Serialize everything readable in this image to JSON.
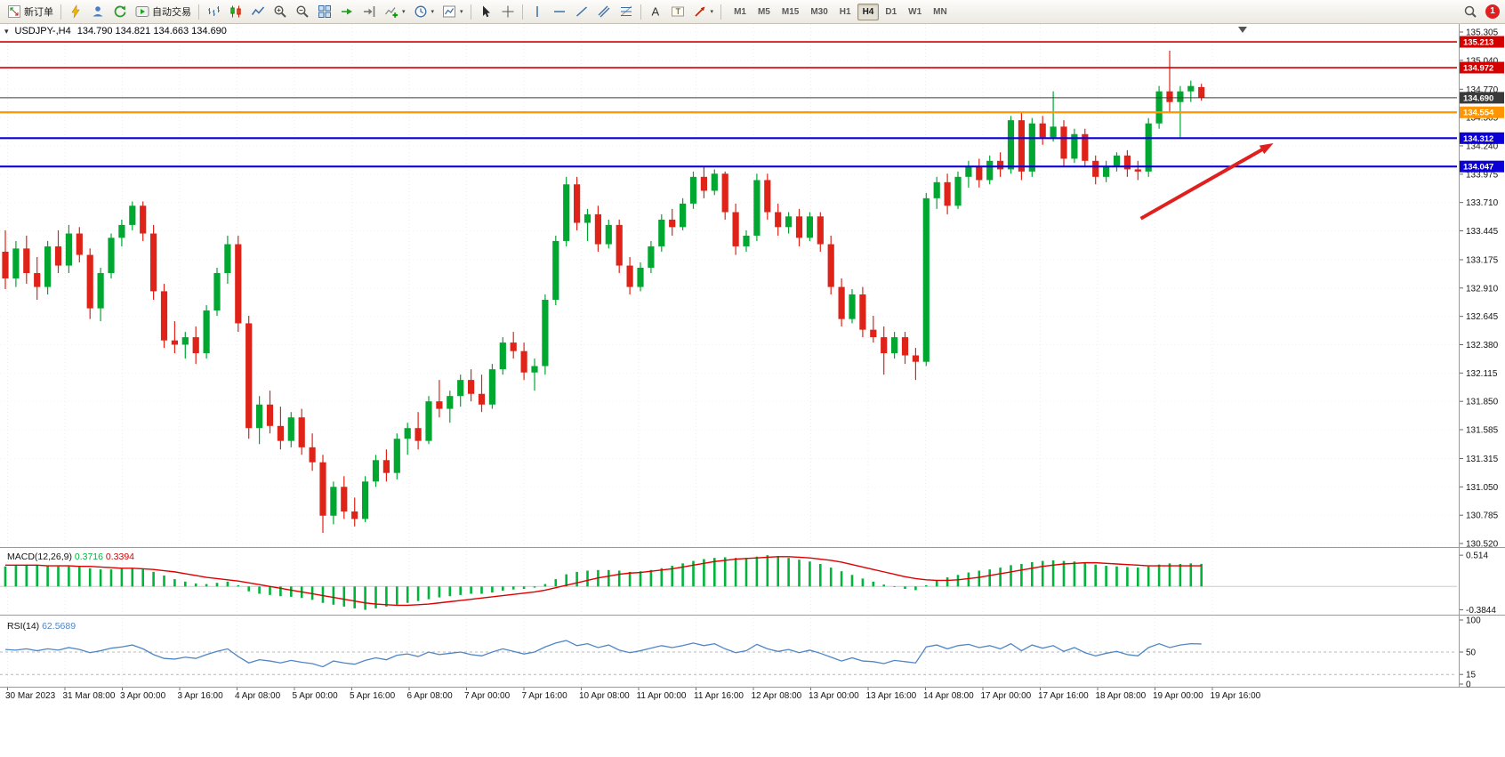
{
  "toolbar": {
    "new_order_label": "新订单",
    "autotrading_label": "自动交易",
    "timeframes": [
      "M1",
      "M5",
      "M15",
      "M30",
      "H1",
      "H4",
      "D1",
      "W1",
      "MN"
    ],
    "active_timeframe": "H4",
    "notification_count": "1"
  },
  "icons": {
    "text_tool_glyph": "A",
    "label_tool_glyph": "T",
    "caret_glyph": "▾",
    "expander_glyph": "▾"
  },
  "chart_header": {
    "symbol": "USDJPY-,H4",
    "ohlc": "134.790 134.821 134.663 134.690"
  },
  "chart_data": {
    "type": "candlestick",
    "symbol": "USDJPY-",
    "timeframe": "H4",
    "title": "USDJPY-,H4 134.790 134.821 134.663 134.690",
    "price_max": 135.305,
    "price_min": 130.52,
    "price_axis": [
      "135.305",
      "135.040",
      "134.770",
      "134.505",
      "134.240",
      "133.975",
      "133.710",
      "133.445",
      "133.175",
      "132.910",
      "132.645",
      "132.380",
      "132.115",
      "131.850",
      "131.585",
      "131.315",
      "131.050",
      "130.785",
      "130.520"
    ],
    "time_axis": [
      "30 Mar 2023",
      "31 Mar 08:00",
      "3 Apr 00:00",
      "3 Apr 16:00",
      "4 Apr 08:00",
      "5 Apr 00:00",
      "5 Apr 16:00",
      "6 Apr 08:00",
      "7 Apr 00:00",
      "7 Apr 16:00",
      "10 Apr 08:00",
      "11 Apr 00:00",
      "11 Apr 16:00",
      "12 Apr 08:00",
      "13 Apr 00:00",
      "13 Apr 16:00",
      "14 Apr 08:00",
      "17 Apr 00:00",
      "17 Apr 16:00",
      "18 Apr 08:00",
      "19 Apr 00:00",
      "19 Apr 16:00"
    ],
    "hlines": [
      {
        "price": 135.213,
        "badge": "135.213",
        "color": "#d40000",
        "width": 1.6
      },
      {
        "price": 134.972,
        "badge": "134.972",
        "color": "#d40000",
        "width": 1.6
      },
      {
        "price": 134.69,
        "badge": "134.690",
        "color": "#3a3a3a",
        "width": 1
      },
      {
        "price": 134.554,
        "badge": "134.554",
        "color": "#ff9500",
        "width": 2.2
      },
      {
        "price": 134.312,
        "badge": "134.312",
        "color": "#0b00d8",
        "width": 2.2
      },
      {
        "price": 134.047,
        "badge": "134.047",
        "color": "#0b00d8",
        "width": 2.2
      }
    ],
    "arrow": {
      "x1_frac": 0.783,
      "price1": 133.56,
      "x2_frac": 0.874,
      "price2": 134.265,
      "color": "#e01f1f"
    },
    "colors": {
      "up": "#00a832",
      "down": "#df2318"
    },
    "candles": [
      [
        133.25,
        133.45,
        132.9,
        133.0
      ],
      [
        133.0,
        133.35,
        132.92,
        133.28
      ],
      [
        133.28,
        133.4,
        132.95,
        133.05
      ],
      [
        133.05,
        133.2,
        132.8,
        132.92
      ],
      [
        132.92,
        133.35,
        132.85,
        133.3
      ],
      [
        133.3,
        133.45,
        133.05,
        133.12
      ],
      [
        133.12,
        133.5,
        133.05,
        133.42
      ],
      [
        133.42,
        133.48,
        133.15,
        133.22
      ],
      [
        133.22,
        133.28,
        132.62,
        132.72
      ],
      [
        132.72,
        133.1,
        132.6,
        133.05
      ],
      [
        133.05,
        133.42,
        133.0,
        133.38
      ],
      [
        133.38,
        133.55,
        133.3,
        133.5
      ],
      [
        133.5,
        133.72,
        133.45,
        133.68
      ],
      [
        133.68,
        133.72,
        133.35,
        133.42
      ],
      [
        133.42,
        133.5,
        132.8,
        132.88
      ],
      [
        132.88,
        132.95,
        132.35,
        132.42
      ],
      [
        132.42,
        132.6,
        132.3,
        132.38
      ],
      [
        132.38,
        132.5,
        132.25,
        132.45
      ],
      [
        132.45,
        132.55,
        132.2,
        132.3
      ],
      [
        132.3,
        132.75,
        132.25,
        132.7
      ],
      [
        132.7,
        133.1,
        132.65,
        133.05
      ],
      [
        133.05,
        133.4,
        132.95,
        133.32
      ],
      [
        133.32,
        133.4,
        132.5,
        132.58
      ],
      [
        132.58,
        132.65,
        131.5,
        131.6
      ],
      [
        131.6,
        131.9,
        131.45,
        131.82
      ],
      [
        131.82,
        131.95,
        131.55,
        131.62
      ],
      [
        131.62,
        131.8,
        131.4,
        131.48
      ],
      [
        131.48,
        131.75,
        131.42,
        131.7
      ],
      [
        131.7,
        131.78,
        131.35,
        131.42
      ],
      [
        131.42,
        131.55,
        131.2,
        131.28
      ],
      [
        131.28,
        131.35,
        130.62,
        130.78
      ],
      [
        130.78,
        131.1,
        130.7,
        131.05
      ],
      [
        131.05,
        131.15,
        130.75,
        130.82
      ],
      [
        130.82,
        130.95,
        130.68,
        130.75
      ],
      [
        130.75,
        131.15,
        130.72,
        131.1
      ],
      [
        131.1,
        131.35,
        131.05,
        131.3
      ],
      [
        131.3,
        131.4,
        131.1,
        131.18
      ],
      [
        131.18,
        131.55,
        131.12,
        131.5
      ],
      [
        131.5,
        131.65,
        131.35,
        131.6
      ],
      [
        131.6,
        131.75,
        131.4,
        131.48
      ],
      [
        131.48,
        131.9,
        131.45,
        131.85
      ],
      [
        131.85,
        132.05,
        131.7,
        131.78
      ],
      [
        131.78,
        131.95,
        131.65,
        131.9
      ],
      [
        131.9,
        132.1,
        131.8,
        132.05
      ],
      [
        132.05,
        132.15,
        131.85,
        131.92
      ],
      [
        131.92,
        132.1,
        131.75,
        131.82
      ],
      [
        131.82,
        132.2,
        131.78,
        132.15
      ],
      [
        132.15,
        132.45,
        132.1,
        132.4
      ],
      [
        132.4,
        132.5,
        132.25,
        132.32
      ],
      [
        132.32,
        132.4,
        132.05,
        132.12
      ],
      [
        132.12,
        132.25,
        131.95,
        132.18
      ],
      [
        132.18,
        132.85,
        132.1,
        132.8
      ],
      [
        132.8,
        133.4,
        132.75,
        133.35
      ],
      [
        133.35,
        133.95,
        133.3,
        133.88
      ],
      [
        133.88,
        133.95,
        133.45,
        133.52
      ],
      [
        133.52,
        133.65,
        133.35,
        133.6
      ],
      [
        133.6,
        133.68,
        133.25,
        133.32
      ],
      [
        133.32,
        133.55,
        133.28,
        133.5
      ],
      [
        133.5,
        133.55,
        133.05,
        133.12
      ],
      [
        133.12,
        133.2,
        132.85,
        132.92
      ],
      [
        132.92,
        133.15,
        132.88,
        133.1
      ],
      [
        133.1,
        133.35,
        133.05,
        133.3
      ],
      [
        133.3,
        133.6,
        133.25,
        133.55
      ],
      [
        133.55,
        133.65,
        133.4,
        133.48
      ],
      [
        133.48,
        133.75,
        133.45,
        133.7
      ],
      [
        133.7,
        134.0,
        133.65,
        133.95
      ],
      [
        133.95,
        134.05,
        133.75,
        133.82
      ],
      [
        133.82,
        134.02,
        133.78,
        133.98
      ],
      [
        133.98,
        134.0,
        133.55,
        133.62
      ],
      [
        133.62,
        133.7,
        133.22,
        133.3
      ],
      [
        133.3,
        133.45,
        133.25,
        133.4
      ],
      [
        133.4,
        133.98,
        133.35,
        133.92
      ],
      [
        133.92,
        133.98,
        133.55,
        133.62
      ],
      [
        133.62,
        133.7,
        133.4,
        133.48
      ],
      [
        133.48,
        133.62,
        133.42,
        133.58
      ],
      [
        133.58,
        133.65,
        133.3,
        133.38
      ],
      [
        133.38,
        133.62,
        133.35,
        133.58
      ],
      [
        133.58,
        133.62,
        133.25,
        133.32
      ],
      [
        133.32,
        133.4,
        132.85,
        132.92
      ],
      [
        132.92,
        133.0,
        132.55,
        132.62
      ],
      [
        132.62,
        132.9,
        132.58,
        132.85
      ],
      [
        132.85,
        132.92,
        132.45,
        132.52
      ],
      [
        132.52,
        132.65,
        132.4,
        132.45
      ],
      [
        132.45,
        132.55,
        132.1,
        132.3
      ],
      [
        132.3,
        132.5,
        132.25,
        132.45
      ],
      [
        132.45,
        132.5,
        132.2,
        132.28
      ],
      [
        132.28,
        132.35,
        132.05,
        132.22
      ],
      [
        132.22,
        133.8,
        132.18,
        133.75
      ],
      [
        133.75,
        133.95,
        133.65,
        133.9
      ],
      [
        133.9,
        133.98,
        133.6,
        133.68
      ],
      [
        133.68,
        134.0,
        133.65,
        133.95
      ],
      [
        133.95,
        134.1,
        133.85,
        134.05
      ],
      [
        134.05,
        134.12,
        133.85,
        133.92
      ],
      [
        133.92,
        134.15,
        133.88,
        134.1
      ],
      [
        134.1,
        134.18,
        133.95,
        134.02
      ],
      [
        134.02,
        134.52,
        133.98,
        134.48
      ],
      [
        134.48,
        134.55,
        133.92,
        134.0
      ],
      [
        134.0,
        134.5,
        133.95,
        134.45
      ],
      [
        134.45,
        134.52,
        134.25,
        134.32
      ],
      [
        134.32,
        134.75,
        134.28,
        134.42
      ],
      [
        134.42,
        134.48,
        134.05,
        134.12
      ],
      [
        134.12,
        134.4,
        134.08,
        134.35
      ],
      [
        134.35,
        134.4,
        134.05,
        134.1
      ],
      [
        134.1,
        134.15,
        133.88,
        133.95
      ],
      [
        133.95,
        134.1,
        133.9,
        134.05
      ],
      [
        134.05,
        134.18,
        134.0,
        134.15
      ],
      [
        134.15,
        134.2,
        133.95,
        134.02
      ],
      [
        134.02,
        134.1,
        133.92,
        134.0
      ],
      [
        134.0,
        134.5,
        133.95,
        134.45
      ],
      [
        134.45,
        134.8,
        134.4,
        134.75
      ],
      [
        134.75,
        135.13,
        134.55,
        134.65
      ],
      [
        134.65,
        134.8,
        134.32,
        134.75
      ],
      [
        134.75,
        134.85,
        134.65,
        134.8
      ],
      [
        134.79,
        134.821,
        134.663,
        134.69
      ]
    ],
    "macd": {
      "name": "MACD(12,26,9)",
      "value_main": "0.3716",
      "value_signal": "0.3394",
      "hist_color": "#00b43c",
      "signal_color": "#dd0000",
      "axis_labels": [
        "0.514",
        "-0.3844"
      ],
      "histogram": [
        0.33,
        0.34,
        0.35,
        0.35,
        0.34,
        0.33,
        0.33,
        0.32,
        0.3,
        0.28,
        0.28,
        0.29,
        0.3,
        0.28,
        0.24,
        0.18,
        0.12,
        0.08,
        0.05,
        0.04,
        0.06,
        0.08,
        0.02,
        -0.08,
        -0.12,
        -0.14,
        -0.16,
        -0.17,
        -0.19,
        -0.22,
        -0.27,
        -0.3,
        -0.33,
        -0.36,
        -0.3844,
        -0.36,
        -0.33,
        -0.3,
        -0.27,
        -0.24,
        -0.21,
        -0.18,
        -0.16,
        -0.14,
        -0.12,
        -0.12,
        -0.1,
        -0.07,
        -0.05,
        -0.04,
        -0.02,
        0.04,
        0.12,
        0.2,
        0.24,
        0.26,
        0.27,
        0.27,
        0.26,
        0.24,
        0.25,
        0.27,
        0.3,
        0.34,
        0.38,
        0.42,
        0.45,
        0.47,
        0.48,
        0.47,
        0.46,
        0.49,
        0.514,
        0.5,
        0.47,
        0.44,
        0.41,
        0.37,
        0.31,
        0.25,
        0.19,
        0.13,
        0.08,
        0.03,
        -0.01,
        -0.04,
        -0.06,
        0.02,
        0.1,
        0.15,
        0.19,
        0.23,
        0.26,
        0.28,
        0.31,
        0.35,
        0.37,
        0.4,
        0.42,
        0.43,
        0.42,
        0.41,
        0.39,
        0.36,
        0.34,
        0.33,
        0.32,
        0.31,
        0.33,
        0.36,
        0.38,
        0.37,
        0.38,
        0.3716
      ],
      "signal": [
        0.35,
        0.35,
        0.35,
        0.35,
        0.34,
        0.34,
        0.34,
        0.33,
        0.33,
        0.32,
        0.31,
        0.3,
        0.3,
        0.29,
        0.28,
        0.26,
        0.24,
        0.21,
        0.18,
        0.15,
        0.13,
        0.11,
        0.09,
        0.06,
        0.03,
        0.0,
        -0.03,
        -0.06,
        -0.09,
        -0.12,
        -0.15,
        -0.18,
        -0.21,
        -0.24,
        -0.27,
        -0.29,
        -0.3,
        -0.31,
        -0.31,
        -0.3,
        -0.29,
        -0.27,
        -0.25,
        -0.23,
        -0.21,
        -0.19,
        -0.17,
        -0.15,
        -0.13,
        -0.11,
        -0.09,
        -0.06,
        -0.02,
        0.02,
        0.06,
        0.1,
        0.14,
        0.17,
        0.2,
        0.22,
        0.23,
        0.25,
        0.27,
        0.29,
        0.32,
        0.35,
        0.38,
        0.41,
        0.43,
        0.45,
        0.46,
        0.47,
        0.48,
        0.49,
        0.49,
        0.48,
        0.47,
        0.45,
        0.43,
        0.4,
        0.36,
        0.32,
        0.28,
        0.24,
        0.2,
        0.16,
        0.13,
        0.11,
        0.1,
        0.1,
        0.11,
        0.13,
        0.15,
        0.18,
        0.21,
        0.24,
        0.27,
        0.3,
        0.33,
        0.35,
        0.37,
        0.38,
        0.39,
        0.39,
        0.38,
        0.37,
        0.36,
        0.35,
        0.34,
        0.34,
        0.34,
        0.34,
        0.34,
        0.3394
      ]
    },
    "rsi": {
      "name": "RSI(14)",
      "value": "62.5689",
      "line_color": "#4f86c6",
      "axis_labels": [
        "100",
        "50",
        "15",
        "0"
      ],
      "levels": [
        50,
        15
      ],
      "values": [
        54,
        53,
        55,
        52,
        55,
        53,
        57,
        54,
        49,
        52,
        56,
        58,
        61,
        55,
        46,
        40,
        39,
        42,
        40,
        46,
        51,
        55,
        43,
        33,
        38,
        36,
        33,
        37,
        34,
        32,
        27,
        36,
        33,
        31,
        37,
        41,
        38,
        45,
        47,
        43,
        50,
        46,
        48,
        50,
        46,
        44,
        50,
        55,
        51,
        47,
        50,
        58,
        64,
        68,
        60,
        63,
        57,
        61,
        53,
        49,
        52,
        56,
        60,
        57,
        60,
        64,
        60,
        63,
        55,
        49,
        52,
        62,
        55,
        51,
        54,
        49,
        53,
        48,
        42,
        36,
        41,
        36,
        35,
        32,
        37,
        35,
        33,
        58,
        61,
        55,
        60,
        62,
        57,
        60,
        55,
        63,
        52,
        61,
        56,
        60,
        51,
        57,
        49,
        44,
        48,
        51,
        46,
        44,
        57,
        63,
        57,
        61,
        63,
        62.57
      ]
    }
  }
}
